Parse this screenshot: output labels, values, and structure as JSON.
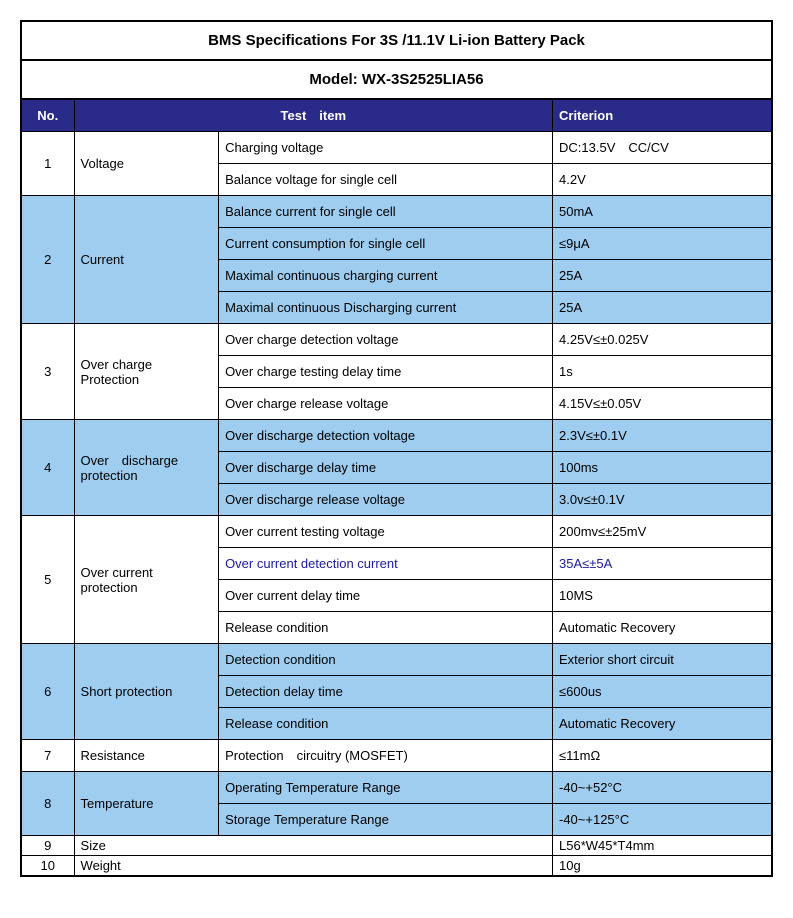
{
  "title": "BMS Specifications For 3S /11.1V Li-ion Battery Pack",
  "model": "Model: WX-3S2525LIA56",
  "headers": {
    "no": "No.",
    "testitem": "Test item",
    "criterion": "Criterion"
  },
  "rows": [
    {
      "no": "1",
      "cat": "Voltage",
      "shade": false,
      "subs": [
        {
          "t": "Charging voltage",
          "c": "DC:13.5V CC/CV"
        },
        {
          "t": "Balance voltage for single cell",
          "c": "4.2V"
        }
      ]
    },
    {
      "no": "2",
      "cat": "Current",
      "shade": true,
      "subs": [
        {
          "t": "Balance current for single cell",
          "c": "50mA"
        },
        {
          "t": "Current consumption for single cell",
          "c": "≤9μA"
        },
        {
          "t": "Maximal continuous charging current",
          "c": "25A"
        },
        {
          "t": "Maximal continuous Discharging current",
          "c": "25A"
        }
      ]
    },
    {
      "no": "3",
      "cat": "Over charge Protection",
      "shade": false,
      "subs": [
        {
          "t": "Over charge detection voltage",
          "c": "4.25V≤±0.025V"
        },
        {
          "t": "Over charge testing delay time",
          "c": "1s"
        },
        {
          "t": "Over charge release voltage",
          "c": "4.15V≤±0.05V"
        }
      ]
    },
    {
      "no": "4",
      "cat": "Over discharge protection",
      "shade": true,
      "subs": [
        {
          "t": "Over discharge detection voltage",
          "c": "2.3V≤±0.1V"
        },
        {
          "t": "Over discharge delay time",
          "c": "100ms"
        },
        {
          "t": "Over discharge release voltage",
          "c": "3.0v≤±0.1V"
        }
      ]
    },
    {
      "no": "5",
      "cat": "Over current protection",
      "shade": false,
      "subs": [
        {
          "t": "Over current testing voltage",
          "c": "200mv≤±25mV"
        },
        {
          "t": "Over current detection current",
          "c": "35A≤±5A",
          "blue": true
        },
        {
          "t": "Over current delay time",
          "c": "10MS"
        },
        {
          "t": "Release condition",
          "c": "Automatic Recovery"
        }
      ]
    },
    {
      "no": "6",
      "cat": "Short protection",
      "shade": true,
      "subs": [
        {
          "t": "Detection condition",
          "c": "Exterior short circuit"
        },
        {
          "t": "Detection delay time",
          "c": "≤600us"
        },
        {
          "t": "Release condition",
          "c": "Automatic Recovery"
        }
      ]
    },
    {
      "no": "7",
      "cat": "Resistance",
      "shade": false,
      "subs": [
        {
          "t": "Protection circuitry (MOSFET)",
          "c": "≤11mΩ"
        }
      ]
    },
    {
      "no": "8",
      "cat": "Temperature",
      "shade": true,
      "subs": [
        {
          "t": "Operating Temperature Range",
          "c": "-40~+52°C"
        },
        {
          "t": "Storage Temperature Range",
          "c": "-40~+125°C"
        }
      ]
    },
    {
      "no": "9",
      "cat": "Size",
      "shade": false,
      "compact": true,
      "subs": [
        {
          "t": "",
          "c": "L56*W45*T4mm",
          "merge": true
        }
      ]
    },
    {
      "no": "10",
      "cat": "Weight",
      "shade": false,
      "compact": true,
      "subs": [
        {
          "t": "",
          "c": "10g",
          "merge": true
        }
      ]
    }
  ]
}
